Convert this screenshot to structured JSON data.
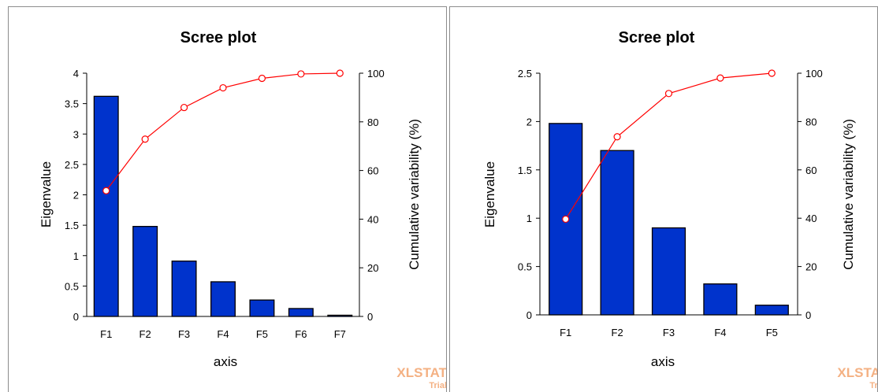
{
  "chart_data": [
    {
      "type": "bar",
      "title": "Scree plot",
      "xlabel": "axis",
      "ylabel": "Eigenvalue",
      "y2label": "Cumulative variability (%)",
      "categories": [
        "F1",
        "F2",
        "F3",
        "F4",
        "F5",
        "F6",
        "F7"
      ],
      "ylim": [
        0,
        4
      ],
      "yticks": [
        "0",
        "0.5",
        "1",
        "1.5",
        "2",
        "2.5",
        "3",
        "3.5",
        "4"
      ],
      "y2lim": [
        0,
        100
      ],
      "y2ticks": [
        "0",
        "20",
        "40",
        "60",
        "80",
        "100"
      ],
      "series": [
        {
          "name": "Eigenvalue",
          "type": "bar",
          "axis": "left",
          "values": [
            3.62,
            1.48,
            0.91,
            0.57,
            0.27,
            0.13,
            0.02
          ]
        },
        {
          "name": "Cumulative variability (%)",
          "type": "line",
          "axis": "right",
          "values": [
            51.7,
            72.9,
            85.9,
            94.0,
            97.9,
            99.7,
            100.0
          ]
        }
      ],
      "colors": {
        "bar": "#0033cc",
        "line": "#ff0000"
      },
      "grid": false,
      "watermark": [
        "XLSTAT",
        "Trial"
      ]
    },
    {
      "type": "bar",
      "title": "Scree plot",
      "xlabel": "axis",
      "ylabel": "Eigenvalue",
      "y2label": "Cumulative variability (%)",
      "categories": [
        "F1",
        "F2",
        "F3",
        "F4",
        "F5"
      ],
      "ylim": [
        0,
        2.5
      ],
      "yticks": [
        "0",
        "0.5",
        "1",
        "1.5",
        "2",
        "2.5"
      ],
      "y2lim": [
        0,
        100
      ],
      "y2ticks": [
        "0",
        "20",
        "40",
        "60",
        "80",
        "100"
      ],
      "series": [
        {
          "name": "Eigenvalue",
          "type": "bar",
          "axis": "left",
          "values": [
            1.98,
            1.7,
            0.9,
            0.32,
            0.1
          ]
        },
        {
          "name": "Cumulative variability (%)",
          "type": "line",
          "axis": "right",
          "values": [
            39.6,
            73.7,
            91.6,
            98.0,
            100.0
          ]
        }
      ],
      "colors": {
        "bar": "#0033cc",
        "line": "#ff0000"
      },
      "grid": false,
      "watermark": [
        "XLSTAT",
        "Trial"
      ]
    }
  ]
}
